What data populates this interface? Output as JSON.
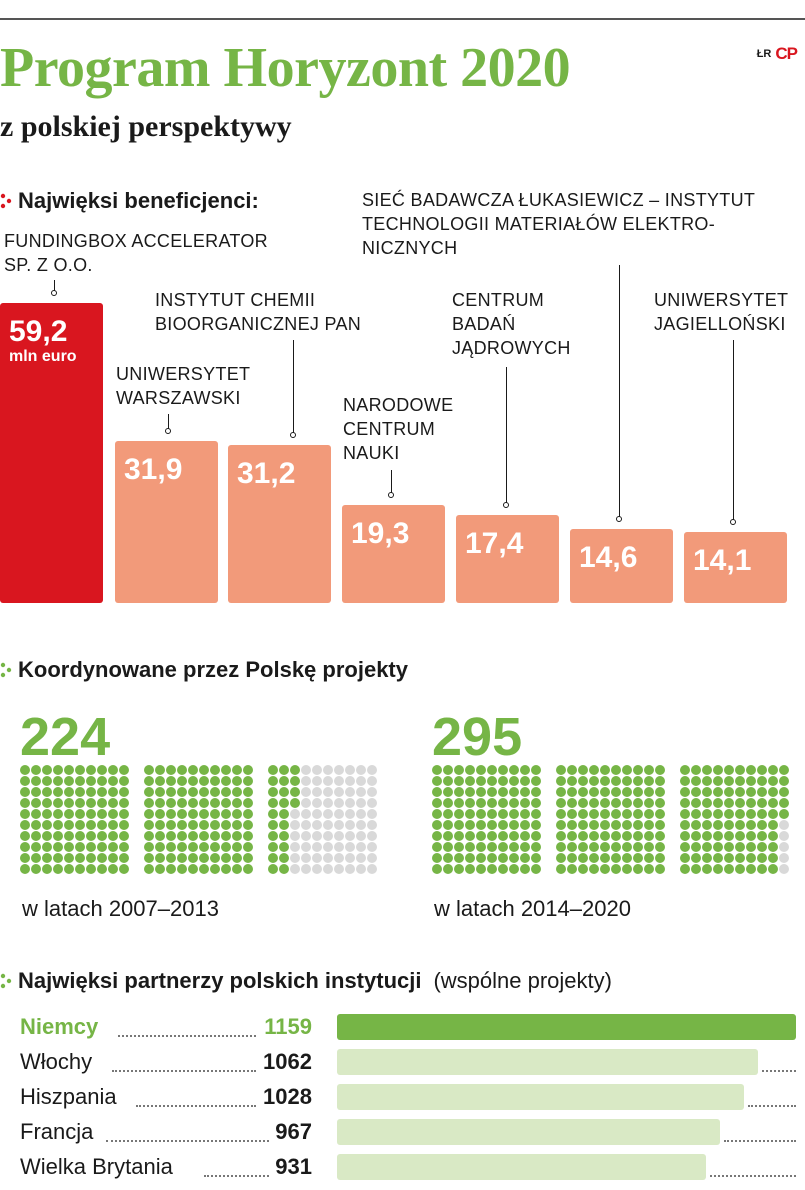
{
  "header": {
    "title": "Program Horyzont 2020",
    "subtitle": "z polskiej perspektywy",
    "logo_lr": "ŁR",
    "logo_cp": "CP"
  },
  "colors": {
    "title_green": "#76b546",
    "top_bar_red": "#d9161f",
    "bar_salmon": "#f29a7a",
    "dot_green": "#76b546",
    "dot_empty": "#d9d9d9",
    "partner_top": "#76b546",
    "partner_other": "#d9e9c5",
    "section_mark_red": "#d9161f",
    "section_mark_green": "#76b546"
  },
  "chart_data": [
    {
      "type": "bar",
      "title": "Najwięksi beneficjenci:",
      "unit": "mln euro",
      "categories": [
        "FUNDINGBOX ACCELERATOR SP. Z O.O.",
        "UNIWERSYTET WARSZAWSKI",
        "INSTYTUT CHEMII BIOORGANICZNEJ PAN",
        "NARODOWE CENTRUM NAUKI",
        "CENTRUM BADAŃ JĄDROWYCH",
        "SIEĆ BADAWCZA ŁUKASIEWICZ – INSTYTUT TECHNOLOGII MATERIAŁÓW ELEKTRONICZNYCH",
        "UNIWERSYTET JAGIELLOŃSKI"
      ],
      "label_lines": [
        [
          "FUNDINGBOX ACCELERATOR",
          "SP. Z O.O."
        ],
        [
          "UNIWERSYTET",
          "WARSZAWSKI"
        ],
        [
          "INSTYTUT CHEMII",
          "BIOORGANICZNEJ PAN"
        ],
        [
          "NARODOWE",
          "CENTRUM",
          "NAUKI"
        ],
        [
          "CENTRUM",
          "BADAŃ",
          "JĄDROWYCH"
        ],
        [
          "SIEĆ BADAWCZA ŁUKASIEWICZ – INSTYTUT",
          "TECHNOLOGII MATERIAŁÓW ELEKTRO-",
          "NICZNYCH"
        ],
        [
          "UNIWERSYTET",
          "JAGIELLOŃSKI"
        ]
      ],
      "values": [
        59.2,
        31.9,
        31.2,
        19.3,
        17.4,
        14.6,
        14.1
      ],
      "value_labels": [
        "59,2",
        "31,9",
        "31,2",
        "19,3",
        "17,4",
        "14,6",
        "14,1"
      ]
    },
    {
      "type": "waffle",
      "title": "Koordynowane przez Polskę projekty",
      "periods": [
        {
          "value": 224,
          "value_label": "224",
          "label": "w latach 2007–2013",
          "total_cells": 300
        },
        {
          "value": 295,
          "value_label": "295",
          "label": "w latach 2014–2020",
          "total_cells": 300
        }
      ]
    },
    {
      "type": "bar",
      "orientation": "horizontal",
      "title": "Najwięksi partnerzy polskich instytucji",
      "subtitle": "(wspólne projekty)",
      "categories": [
        "Niemcy",
        "Włochy",
        "Hiszpania",
        "Francja",
        "Wielka Brytania"
      ],
      "values": [
        1159,
        1062,
        1028,
        967,
        931
      ],
      "value_labels": [
        "1159",
        "1062",
        "1028",
        "967",
        "931"
      ]
    }
  ]
}
